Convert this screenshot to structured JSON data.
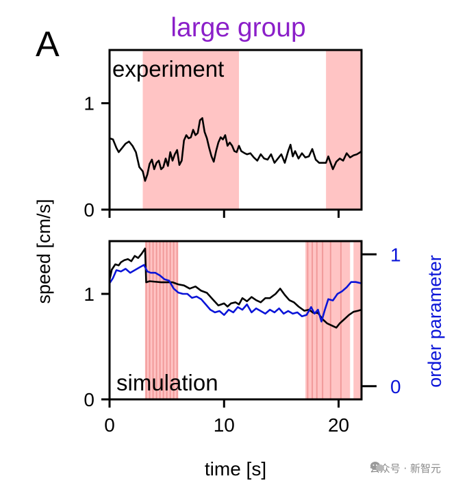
{
  "figure": {
    "panel_letter": "A",
    "title": "large group",
    "title_color": "#8b1fc9",
    "shade_color": "#ffc4c4",
    "shade_line_color": "#f19a9a"
  },
  "watermark": {
    "text": "公众号 · 新智元",
    "icon": "wechat-official-account-icon"
  },
  "chart_data": [
    {
      "type": "line",
      "name": "experiment",
      "label": "experiment",
      "title": "large group",
      "xlabel": "time [s]",
      "ylabel": "speed [cm/s]",
      "xlim": [
        0,
        22
      ],
      "ylim": [
        0,
        1.5
      ],
      "yticks": [
        0,
        1
      ],
      "ytick_labels": [
        "0",
        "1"
      ],
      "xticks": [
        0,
        10,
        20
      ],
      "shaded_intervals": [
        [
          2.9,
          11.3
        ],
        [
          18.9,
          22.0
        ]
      ],
      "series": [
        {
          "name": "speed",
          "color": "#000000",
          "points": [
            [
              0,
              0.67
            ],
            [
              0.3,
              0.66
            ],
            [
              0.6,
              0.58
            ],
            [
              0.8,
              0.54
            ],
            [
              1.1,
              0.58
            ],
            [
              1.4,
              0.62
            ],
            [
              1.7,
              0.64
            ],
            [
              2.0,
              0.6
            ],
            [
              2.3,
              0.54
            ],
            [
              2.6,
              0.4
            ],
            [
              2.9,
              0.36
            ],
            [
              3.1,
              0.27
            ],
            [
              3.3,
              0.33
            ],
            [
              3.5,
              0.43
            ],
            [
              3.7,
              0.47
            ],
            [
              3.9,
              0.38
            ],
            [
              4.1,
              0.44
            ],
            [
              4.3,
              0.46
            ],
            [
              4.5,
              0.38
            ],
            [
              4.7,
              0.4
            ],
            [
              4.9,
              0.48
            ],
            [
              5.1,
              0.41
            ],
            [
              5.3,
              0.54
            ],
            [
              5.5,
              0.46
            ],
            [
              5.7,
              0.52
            ],
            [
              5.9,
              0.56
            ],
            [
              6.1,
              0.42
            ],
            [
              6.3,
              0.46
            ],
            [
              6.5,
              0.65
            ],
            [
              6.7,
              0.7
            ],
            [
              6.9,
              0.67
            ],
            [
              7.1,
              0.68
            ],
            [
              7.3,
              0.75
            ],
            [
              7.5,
              0.7
            ],
            [
              7.7,
              0.72
            ],
            [
              7.9,
              0.84
            ],
            [
              8.1,
              0.86
            ],
            [
              8.3,
              0.73
            ],
            [
              8.5,
              0.67
            ],
            [
              8.7,
              0.58
            ],
            [
              8.9,
              0.5
            ],
            [
              9.1,
              0.45
            ],
            [
              9.3,
              0.55
            ],
            [
              9.5,
              0.63
            ],
            [
              9.7,
              0.68
            ],
            [
              9.9,
              0.66
            ],
            [
              10.1,
              0.7
            ],
            [
              10.3,
              0.6
            ],
            [
              10.5,
              0.63
            ],
            [
              10.7,
              0.6
            ],
            [
              10.9,
              0.55
            ],
            [
              11.1,
              0.54
            ],
            [
              11.3,
              0.6
            ],
            [
              11.5,
              0.55
            ],
            [
              11.8,
              0.53
            ],
            [
              12.0,
              0.52
            ],
            [
              12.3,
              0.53
            ],
            [
              12.6,
              0.49
            ],
            [
              12.9,
              0.46
            ],
            [
              13.2,
              0.52
            ],
            [
              13.5,
              0.48
            ],
            [
              13.8,
              0.47
            ],
            [
              14.1,
              0.52
            ],
            [
              14.4,
              0.44
            ],
            [
              14.7,
              0.48
            ],
            [
              15.0,
              0.52
            ],
            [
              15.3,
              0.44
            ],
            [
              15.6,
              0.55
            ],
            [
              15.8,
              0.61
            ],
            [
              16.0,
              0.5
            ],
            [
              16.2,
              0.55
            ],
            [
              16.5,
              0.48
            ],
            [
              16.8,
              0.53
            ],
            [
              17.1,
              0.49
            ],
            [
              17.4,
              0.5
            ],
            [
              17.7,
              0.57
            ],
            [
              18.0,
              0.47
            ],
            [
              18.3,
              0.44
            ],
            [
              18.6,
              0.44
            ],
            [
              18.9,
              0.44
            ],
            [
              19.1,
              0.5
            ],
            [
              19.3,
              0.44
            ],
            [
              19.5,
              0.38
            ],
            [
              19.8,
              0.45
            ],
            [
              20.1,
              0.48
            ],
            [
              20.4,
              0.46
            ],
            [
              20.7,
              0.53
            ],
            [
              21.0,
              0.49
            ],
            [
              21.3,
              0.51
            ],
            [
              21.6,
              0.52
            ],
            [
              21.9,
              0.54
            ],
            [
              22.0,
              0.55
            ]
          ]
        }
      ]
    },
    {
      "type": "line",
      "name": "simulation",
      "label": "simulation",
      "xlabel": "time [s]",
      "ylabel": "speed [cm/s]",
      "y2label": "order parameter",
      "y2label_color": "#0a14d8",
      "xlim": [
        0,
        22
      ],
      "ylim": [
        0,
        1.5
      ],
      "y2lim": [
        -0.1,
        1.1
      ],
      "yticks": [
        0,
        1
      ],
      "ytick_labels": [
        "0",
        "1"
      ],
      "y2ticks": [
        0,
        1
      ],
      "y2tick_labels": [
        "0",
        "1"
      ],
      "xticks": [
        0,
        10,
        20
      ],
      "xtick_labels": [
        "0",
        "10",
        "20"
      ],
      "shaded_intervals": [
        [
          3.1,
          6.0
        ],
        [
          17.1,
          21.0
        ],
        [
          21.3,
          22.0
        ]
      ],
      "shade_stripes": [
        3.2,
        3.5,
        3.8,
        4.1,
        4.4,
        4.7,
        5.0,
        5.3,
        5.6,
        5.9,
        17.3,
        17.7,
        18.1,
        18.6,
        19.3,
        20.2
      ],
      "series": [
        {
          "name": "speed",
          "axis": "left",
          "color": "#000000",
          "points": [
            [
              0,
              1.13
            ],
            [
              0.2,
              1.23
            ],
            [
              0.5,
              1.28
            ],
            [
              0.8,
              1.27
            ],
            [
              1.0,
              1.3
            ],
            [
              1.3,
              1.32
            ],
            [
              1.6,
              1.33
            ],
            [
              1.9,
              1.31
            ],
            [
              2.2,
              1.36
            ],
            [
              2.5,
              1.34
            ],
            [
              2.8,
              1.38
            ],
            [
              3.1,
              1.43
            ],
            [
              3.2,
              1.11
            ],
            [
              3.5,
              1.12
            ],
            [
              4.5,
              1.11
            ],
            [
              5.5,
              1.11
            ],
            [
              6.0,
              1.09
            ],
            [
              6.5,
              1.08
            ],
            [
              7.0,
              1.05
            ],
            [
              7.5,
              1.07
            ],
            [
              8.0,
              1.03
            ],
            [
              8.5,
              1.01
            ],
            [
              9.0,
              0.95
            ],
            [
              9.5,
              0.89
            ],
            [
              10.0,
              0.91
            ],
            [
              10.3,
              0.88
            ],
            [
              10.6,
              0.91
            ],
            [
              11.0,
              0.92
            ],
            [
              11.3,
              0.9
            ],
            [
              11.6,
              0.96
            ],
            [
              12.0,
              0.93
            ],
            [
              12.4,
              0.97
            ],
            [
              12.8,
              0.94
            ],
            [
              13.2,
              0.92
            ],
            [
              13.6,
              0.96
            ],
            [
              14.0,
              0.96
            ],
            [
              14.5,
              1.0
            ],
            [
              14.9,
              1.05
            ],
            [
              15.3,
              0.99
            ],
            [
              15.7,
              0.94
            ],
            [
              16.1,
              0.92
            ],
            [
              16.5,
              0.88
            ],
            [
              17.0,
              0.84
            ],
            [
              17.4,
              0.85
            ],
            [
              17.8,
              0.82
            ],
            [
              18.2,
              0.82
            ],
            [
              18.6,
              0.76
            ],
            [
              19.0,
              0.72
            ],
            [
              19.4,
              0.7
            ],
            [
              19.8,
              0.68
            ],
            [
              20.1,
              0.72
            ],
            [
              20.5,
              0.76
            ],
            [
              20.9,
              0.8
            ],
            [
              21.3,
              0.83
            ],
            [
              21.7,
              0.84
            ],
            [
              22.0,
              0.85
            ]
          ]
        },
        {
          "name": "order parameter",
          "axis": "right",
          "color": "#0a14d8",
          "points": [
            [
              0,
              0.78
            ],
            [
              0.3,
              0.82
            ],
            [
              0.6,
              0.88
            ],
            [
              1.0,
              0.87
            ],
            [
              1.4,
              0.89
            ],
            [
              1.8,
              0.86
            ],
            [
              2.2,
              0.88
            ],
            [
              2.6,
              0.9
            ],
            [
              3.0,
              0.92
            ],
            [
              3.3,
              0.87
            ],
            [
              3.6,
              0.86
            ],
            [
              4.0,
              0.86
            ],
            [
              4.4,
              0.84
            ],
            [
              4.8,
              0.81
            ],
            [
              5.2,
              0.8
            ],
            [
              5.6,
              0.74
            ],
            [
              6.0,
              0.71
            ],
            [
              6.4,
              0.7
            ],
            [
              6.8,
              0.7
            ],
            [
              7.2,
              0.67
            ],
            [
              7.6,
              0.68
            ],
            [
              8.0,
              0.66
            ],
            [
              8.4,
              0.62
            ],
            [
              8.8,
              0.58
            ],
            [
              9.2,
              0.56
            ],
            [
              9.6,
              0.57
            ],
            [
              10.0,
              0.54
            ],
            [
              10.4,
              0.58
            ],
            [
              10.8,
              0.56
            ],
            [
              11.2,
              0.6
            ],
            [
              11.6,
              0.58
            ],
            [
              12.0,
              0.62
            ],
            [
              12.4,
              0.56
            ],
            [
              12.8,
              0.59
            ],
            [
              13.2,
              0.57
            ],
            [
              13.6,
              0.55
            ],
            [
              14.0,
              0.58
            ],
            [
              14.4,
              0.56
            ],
            [
              14.8,
              0.59
            ],
            [
              15.2,
              0.55
            ],
            [
              15.6,
              0.57
            ],
            [
              16.0,
              0.55
            ],
            [
              16.4,
              0.56
            ],
            [
              16.8,
              0.53
            ],
            [
              17.2,
              0.54
            ],
            [
              17.6,
              0.6
            ],
            [
              17.9,
              0.55
            ],
            [
              18.2,
              0.58
            ],
            [
              18.5,
              0.49
            ],
            [
              18.8,
              0.58
            ],
            [
              19.1,
              0.66
            ],
            [
              19.5,
              0.65
            ],
            [
              19.9,
              0.7
            ],
            [
              20.3,
              0.72
            ],
            [
              20.7,
              0.75
            ],
            [
              21.1,
              0.79
            ],
            [
              21.5,
              0.79
            ],
            [
              22.0,
              0.78
            ]
          ]
        }
      ]
    }
  ]
}
